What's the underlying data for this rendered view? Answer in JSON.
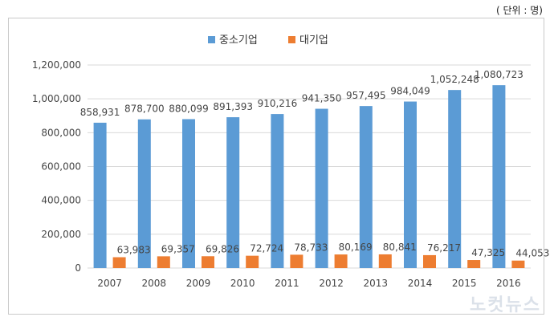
{
  "unit_label": "( 단위 : 명)",
  "watermark": "노컷뉴스",
  "colors": {
    "large_firm": "#ed7d31",
    "sme": "#5b9bd5",
    "grid": "#d9d9d9"
  },
  "chart_data": {
    "type": "bar",
    "categories": [
      "2007",
      "2008",
      "2009",
      "2010",
      "2011",
      "2012",
      "2013",
      "2014",
      "2015",
      "2016"
    ],
    "series": [
      {
        "name": "중소기업",
        "values": [
          858931,
          878700,
          880099,
          891393,
          910216,
          941350,
          957495,
          984049,
          1052248,
          1080723
        ],
        "labels": [
          "858,931",
          "878,700",
          "880,099",
          "891,393",
          "910,216",
          "941,350",
          "957,495",
          "984,049",
          "1,052,248",
          "1,080,723"
        ]
      },
      {
        "name": "대기업",
        "values": [
          63983,
          69357,
          69826,
          72724,
          78733,
          80169,
          80841,
          76217,
          47325,
          44053
        ],
        "labels": [
          "63,983",
          "69,357",
          "69,826",
          "72,724",
          "78,733",
          "80,169",
          "80,841",
          "76,217",
          "47,325",
          "44,053"
        ]
      }
    ],
    "ylim": [
      0,
      1200000
    ],
    "yticks": [
      0,
      200000,
      400000,
      600000,
      800000,
      1000000,
      1200000
    ],
    "ytick_labels": [
      "0",
      "200,000",
      "400,000",
      "600,000",
      "800,000",
      "1,000,000",
      "1,200,000"
    ],
    "grid": true,
    "legend": "top-center"
  }
}
